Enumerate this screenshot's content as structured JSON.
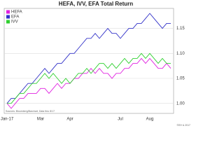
{
  "chart_data": {
    "type": "line",
    "title": "HEFA, IVV, EFA Total Return",
    "source": "Sources: Bloomberg/Barchart, Data thru 8/17",
    "copyright": "©EH & 2017",
    "categories": [
      "Jan-17",
      null,
      null,
      null,
      null,
      null,
      null,
      null,
      "Mar",
      null,
      null,
      null,
      null,
      null,
      null,
      "Apr",
      null,
      null,
      null,
      null,
      null,
      null,
      null,
      null,
      null,
      null,
      null,
      "Jul",
      null,
      null,
      null,
      null,
      null,
      null,
      "Aug",
      null,
      null,
      null,
      null,
      null
    ],
    "series": [
      {
        "name": "HEFA",
        "color": "#e020e0",
        "values": [
          1.0,
          0.99,
          1.0,
          1.01,
          1.01,
          1.02,
          1.02,
          1.02,
          1.03,
          1.03,
          1.02,
          1.03,
          1.04,
          1.03,
          1.04,
          1.04,
          1.05,
          1.05,
          1.06,
          1.06,
          1.07,
          1.06,
          1.07,
          1.06,
          1.06,
          1.05,
          1.06,
          1.06,
          1.07,
          1.07,
          1.08,
          1.08,
          1.09,
          1.08,
          1.09,
          1.08,
          1.07,
          1.07,
          1.08,
          1.07
        ]
      },
      {
        "name": "EFA",
        "color": "#3030c8",
        "values": [
          1.0,
          1.01,
          1.01,
          1.02,
          1.03,
          1.04,
          1.04,
          1.05,
          1.06,
          1.07,
          1.06,
          1.07,
          1.08,
          1.08,
          1.09,
          1.1,
          1.1,
          1.11,
          1.12,
          1.13,
          1.13,
          1.14,
          1.13,
          1.14,
          1.15,
          1.14,
          1.14,
          1.13,
          1.14,
          1.15,
          1.15,
          1.16,
          1.16,
          1.17,
          1.18,
          1.17,
          1.16,
          1.15,
          1.16,
          1.16
        ]
      },
      {
        "name": "IVV",
        "color": "#30d030",
        "values": [
          1.0,
          1.0,
          1.01,
          1.02,
          1.02,
          1.03,
          1.04,
          1.04,
          1.05,
          1.06,
          1.05,
          1.06,
          1.05,
          1.04,
          1.05,
          1.04,
          1.05,
          1.06,
          1.06,
          1.07,
          1.06,
          1.07,
          1.08,
          1.08,
          1.07,
          1.08,
          1.07,
          1.08,
          1.09,
          1.08,
          1.09,
          1.09,
          1.1,
          1.09,
          1.1,
          1.09,
          1.08,
          1.09,
          1.08,
          1.08
        ]
      }
    ],
    "ylim": [
      0.98,
      1.19
    ],
    "yticks": [
      {
        "value": 1.0,
        "label": "1.00"
      },
      1.05,
      {
        "value": 1.1,
        "label": "1.10"
      },
      1.15
    ],
    "grid": true,
    "legend": "top-left"
  }
}
